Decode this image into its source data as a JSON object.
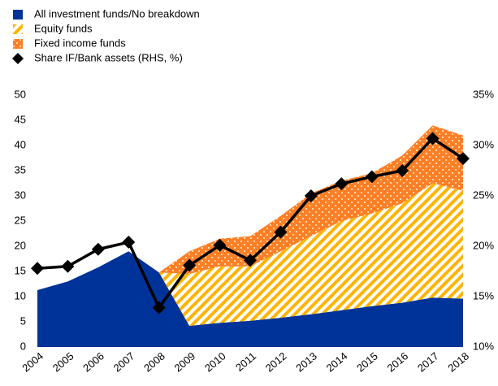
{
  "chart_data": {
    "type": "stacked-area-line",
    "categories": [
      "2004",
      "2005",
      "2006",
      "2007",
      "2008",
      "2009",
      "2010",
      "2011",
      "2012",
      "2013",
      "2014",
      "2015",
      "2016",
      "2017",
      "2018"
    ],
    "series": [
      {
        "name": "All investment funds/No breakdown",
        "color": "#003399",
        "values": [
          11.3,
          13,
          15.8,
          19,
          14.8,
          4.2,
          4.8,
          5.2,
          5.8,
          6.5,
          7.3,
          8.1,
          8.8,
          9.8,
          9.6
        ]
      },
      {
        "name": "Equity funds",
        "color": "#ffb400",
        "values": [
          null,
          null,
          null,
          null,
          0,
          10.3,
          11.2,
          10.8,
          13.2,
          15.5,
          17.7,
          18.4,
          19.7,
          22.7,
          21.4
        ]
      },
      {
        "name": "Fixed income funds",
        "color": "#ff7f27",
        "values": [
          null,
          null,
          null,
          null,
          0,
          4.5,
          5.5,
          6,
          7,
          8.5,
          8,
          8,
          9.5,
          11.5,
          11
        ]
      },
      {
        "name": "Share IF/Bank assets (RHS, %)",
        "color": "#000000",
        "axis": "y2",
        "values": [
          17.8,
          18,
          19.7,
          20.4,
          13.9,
          18.1,
          20.1,
          18.6,
          21.4,
          25,
          26.2,
          26.9,
          27.5,
          30.7,
          28.7
        ]
      }
    ],
    "ylim": [
      0,
      50
    ],
    "yticks": [
      0,
      5,
      10,
      15,
      20,
      25,
      30,
      35,
      40,
      45,
      50
    ],
    "y2lim": [
      10,
      35
    ],
    "y2ticks": [
      {
        "value": 10,
        "label": "10%"
      },
      {
        "value": 15,
        "label": "15%"
      },
      {
        "value": 20,
        "label": "20%"
      },
      {
        "value": 25,
        "label": "25%"
      },
      {
        "value": 30,
        "label": "30%"
      },
      {
        "value": 35,
        "label": "35%"
      }
    ],
    "grid": false
  }
}
